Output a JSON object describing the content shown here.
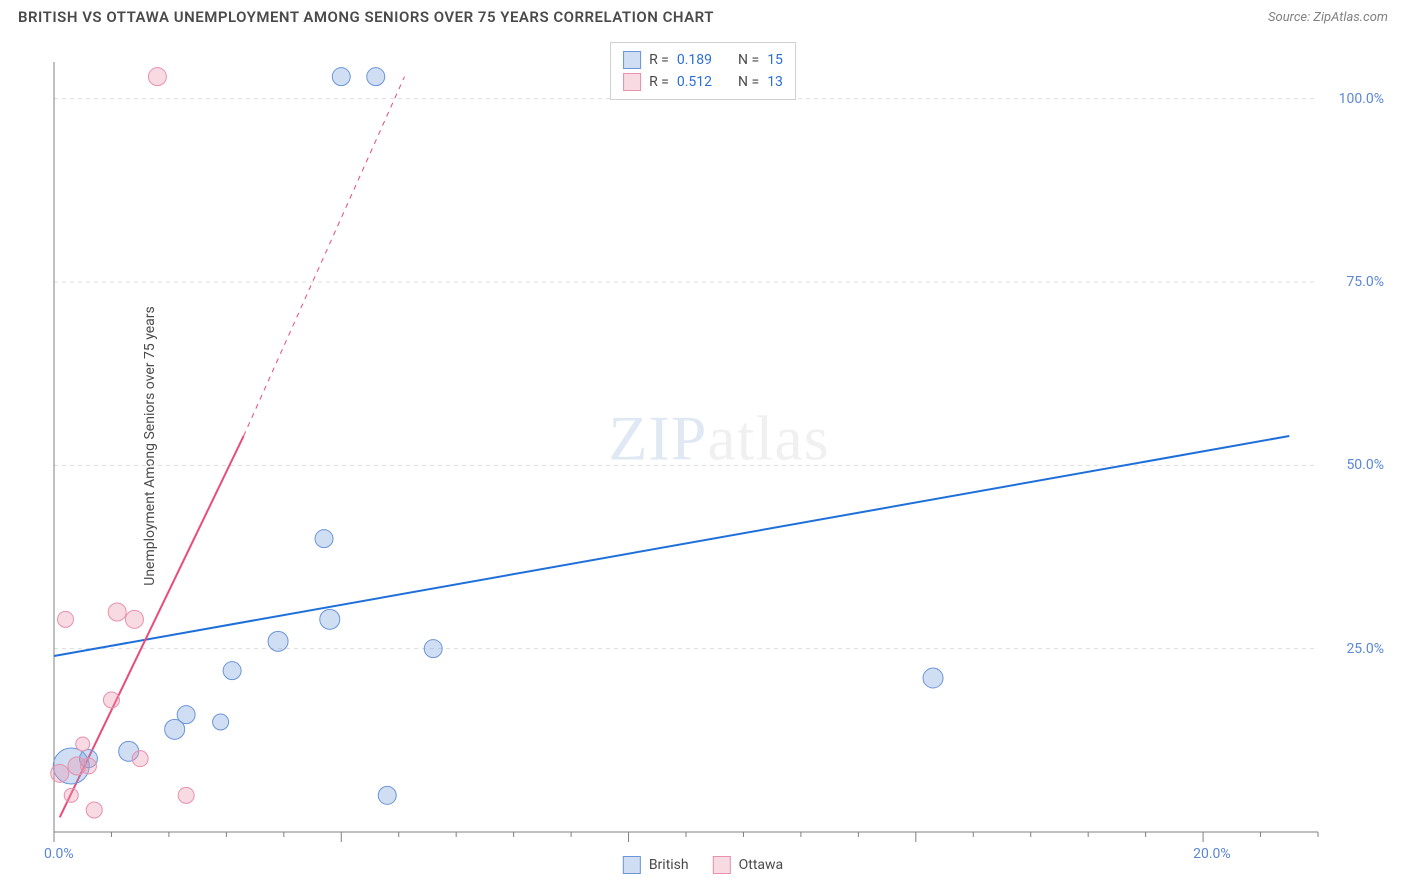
{
  "header": {
    "title": "BRITISH VS OTTAWA UNEMPLOYMENT AMONG SENIORS OVER 75 YEARS CORRELATION CHART",
    "source": "Source: ZipAtlas.com"
  },
  "chart": {
    "type": "scatter",
    "ylabel": "Unemployment Among Seniors over 75 years",
    "xlim": [
      0,
      22
    ],
    "ylim": [
      0,
      105
    ],
    "xtick_labels": [
      "0.0%",
      "20.0%"
    ],
    "xtick_positions": [
      0,
      20
    ],
    "x_minor_ticks": [
      0,
      1,
      2,
      3,
      4,
      5,
      6,
      7,
      8,
      9,
      10,
      11,
      12,
      13,
      14,
      15,
      16,
      17,
      18,
      19,
      20,
      21,
      22
    ],
    "ytick_labels": [
      "25.0%",
      "50.0%",
      "75.0%",
      "100.0%"
    ],
    "ytick_positions": [
      25,
      50,
      75,
      100
    ],
    "grid_color": "#dddddd",
    "axis_color": "#808080",
    "background_color": "#ffffff",
    "watermark": {
      "zip": "ZIP",
      "atlas": "atlas"
    },
    "series": [
      {
        "name": "British",
        "color_fill": "rgba(120,160,220,0.35)",
        "color_stroke": "#6a95d8",
        "points": [
          {
            "x": 0.3,
            "y": 9,
            "r": 18
          },
          {
            "x": 0.6,
            "y": 10,
            "r": 9
          },
          {
            "x": 1.3,
            "y": 11,
            "r": 10
          },
          {
            "x": 2.1,
            "y": 14,
            "r": 10
          },
          {
            "x": 2.3,
            "y": 16,
            "r": 9
          },
          {
            "x": 2.9,
            "y": 15,
            "r": 8
          },
          {
            "x": 3.1,
            "y": 22,
            "r": 9
          },
          {
            "x": 3.9,
            "y": 26,
            "r": 10
          },
          {
            "x": 4.8,
            "y": 29,
            "r": 10
          },
          {
            "x": 4.7,
            "y": 40,
            "r": 9
          },
          {
            "x": 6.6,
            "y": 25,
            "r": 9
          },
          {
            "x": 5.8,
            "y": 5,
            "r": 9
          },
          {
            "x": 5.0,
            "y": 103,
            "r": 9
          },
          {
            "x": 5.6,
            "y": 103,
            "r": 9
          },
          {
            "x": 15.3,
            "y": 21,
            "r": 10
          }
        ],
        "trend": {
          "x1": 0,
          "y1": 24,
          "x2": 21.5,
          "y2": 54,
          "color": "#1e6fd9",
          "width": 2
        }
      },
      {
        "name": "Ottawa",
        "color_fill": "rgba(235,150,175,0.35)",
        "color_stroke": "#e890ad",
        "points": [
          {
            "x": 0.1,
            "y": 8,
            "r": 9
          },
          {
            "x": 0.4,
            "y": 9,
            "r": 9
          },
          {
            "x": 0.6,
            "y": 9,
            "r": 8
          },
          {
            "x": 0.7,
            "y": 3,
            "r": 8
          },
          {
            "x": 0.2,
            "y": 29,
            "r": 8
          },
          {
            "x": 1.0,
            "y": 18,
            "r": 8
          },
          {
            "x": 1.1,
            "y": 30,
            "r": 9
          },
          {
            "x": 1.4,
            "y": 29,
            "r": 9
          },
          {
            "x": 1.5,
            "y": 10,
            "r": 8
          },
          {
            "x": 2.3,
            "y": 5,
            "r": 8
          },
          {
            "x": 1.8,
            "y": 103,
            "r": 9
          },
          {
            "x": 0.3,
            "y": 5,
            "r": 7
          },
          {
            "x": 0.5,
            "y": 12,
            "r": 7
          }
        ],
        "trend_solid": {
          "x1": 0.1,
          "y1": 2,
          "x2": 3.3,
          "y2": 54,
          "color": "#e94b7a",
          "width": 2
        },
        "trend_dashed": {
          "x1": 3.3,
          "y1": 54,
          "x2": 6.1,
          "y2": 103,
          "color": "#e94b7a",
          "width": 1
        }
      }
    ],
    "top_legend": [
      {
        "swatch_fill": "rgba(120,160,220,0.35)",
        "swatch_stroke": "#6a95d8",
        "r_label": "R =",
        "r_val": "0.189",
        "n_label": "N =",
        "n_val": "15"
      },
      {
        "swatch_fill": "rgba(235,150,175,0.35)",
        "swatch_stroke": "#e890ad",
        "r_label": "R =",
        "r_val": "0.512",
        "n_label": "N =",
        "n_val": "13"
      }
    ],
    "bottom_legend": [
      {
        "swatch_fill": "rgba(120,160,220,0.35)",
        "swatch_stroke": "#6a95d8",
        "label": "British"
      },
      {
        "swatch_fill": "rgba(235,150,175,0.35)",
        "swatch_stroke": "#e890ad",
        "label": "Ottawa"
      }
    ]
  }
}
